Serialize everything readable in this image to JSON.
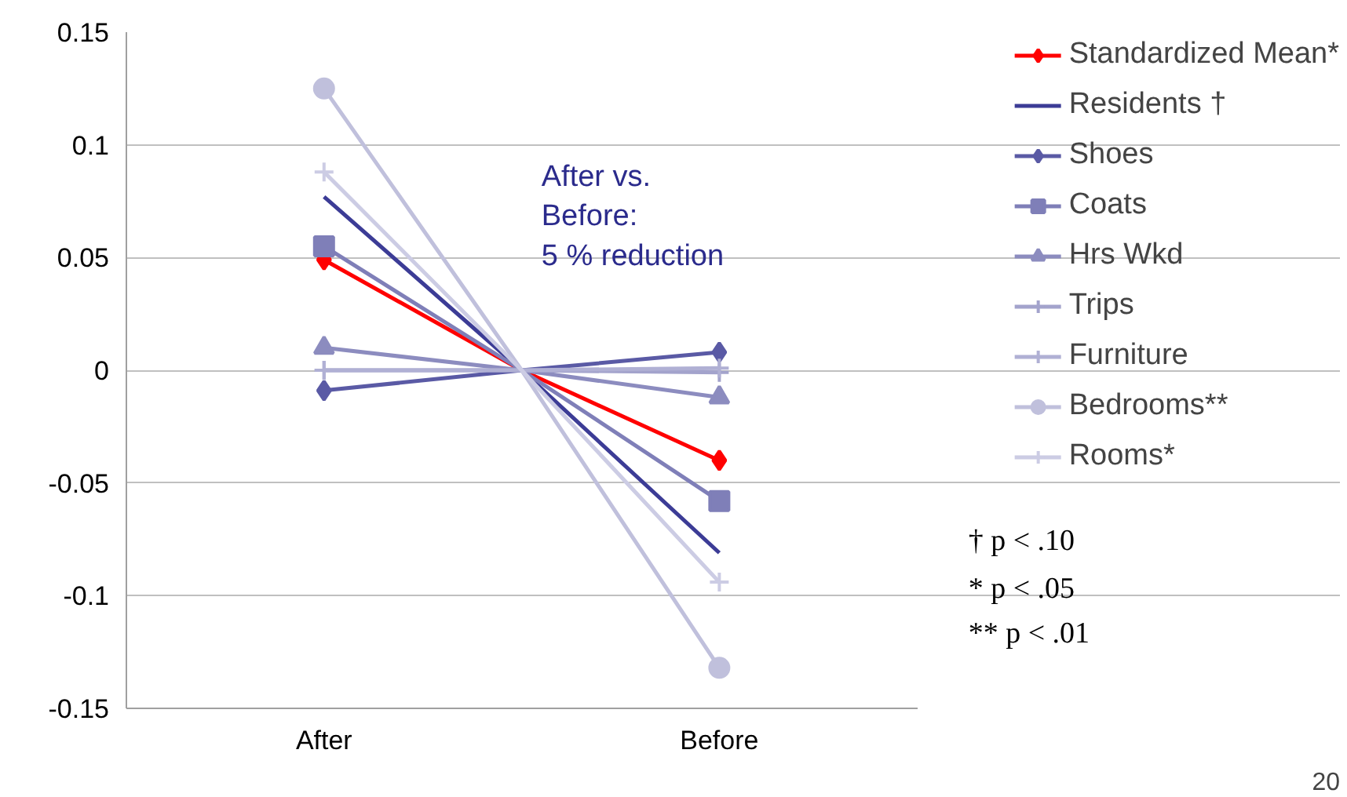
{
  "chart_data": {
    "type": "line",
    "categories": [
      "After",
      null,
      "Before"
    ],
    "ylim": [
      -0.15,
      0.15
    ],
    "yticks": [
      -0.15,
      -0.1,
      -0.05,
      0,
      0.05,
      0.1,
      0.15
    ],
    "grid": "y",
    "legend": "right",
    "line_style": "solid",
    "series": [
      {
        "name": "Standardized Mean*",
        "color": "#ff0000",
        "marker": "diamond",
        "values": [
          0.049,
          0,
          -0.04
        ]
      },
      {
        "name": "Residents †",
        "color": "#3c3c96",
        "marker": "none",
        "values": [
          0.077,
          0,
          -0.081
        ]
      },
      {
        "name": "Shoes",
        "color": "#5a5aa5",
        "marker": "diamond",
        "values": [
          -0.009,
          0,
          0.008
        ]
      },
      {
        "name": "Coats",
        "color": "#7f7fb8",
        "marker": "square",
        "values": [
          0.055,
          0,
          -0.058
        ]
      },
      {
        "name": "Hrs Wkd",
        "color": "#8c8cbf",
        "marker": "triangle",
        "values": [
          0.01,
          0,
          -0.012
        ]
      },
      {
        "name": "Trips",
        "color": "#a3a3cc",
        "marker": "cross",
        "values": [
          0,
          0,
          -0.001
        ]
      },
      {
        "name": "Furniture",
        "color": "#b0b0d4",
        "marker": "cross",
        "values": [
          0,
          0,
          0.001
        ]
      },
      {
        "name": "Bedrooms**",
        "color": "#c0c0dc",
        "marker": "circle",
        "values": [
          0.125,
          0,
          -0.132
        ]
      },
      {
        "name": "Rooms*",
        "color": "#ccccE4",
        "marker": "cross",
        "values": [
          0.088,
          0,
          -0.094
        ]
      }
    ],
    "annotations": [
      "After vs.\nBefore:\n5 % reduction",
      "†  p < .10",
      "*   p < .05",
      "** p < .01",
      "20"
    ]
  }
}
